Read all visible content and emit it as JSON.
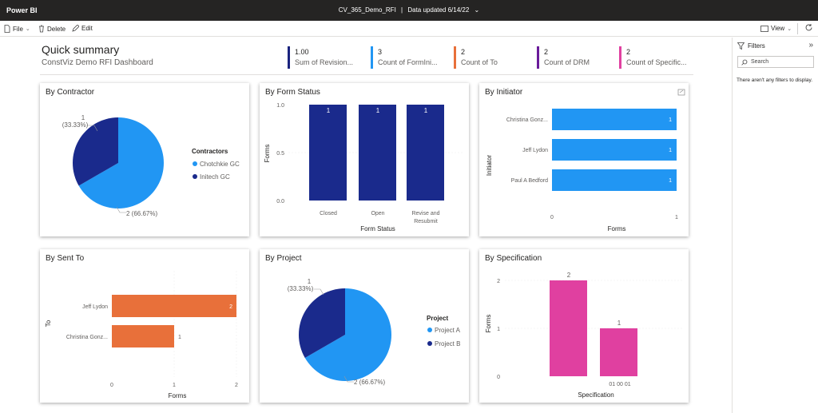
{
  "app": {
    "name": "Power BI",
    "report_title": "CV_365_Demo_RFI",
    "separator": "|",
    "data_updated": "Data updated 6/14/22"
  },
  "toolbar": {
    "file": "File",
    "delete": "Delete",
    "edit": "Edit",
    "view": "View"
  },
  "summary": {
    "title": "Quick summary",
    "subtitle": "ConstViz Demo RFI Dashboard"
  },
  "kpis": [
    {
      "value": "1.00",
      "label": "Sum of Revision...",
      "color": "#1a237e"
    },
    {
      "value": "3",
      "label": "Count of FormIni...",
      "color": "#2196f3"
    },
    {
      "value": "2",
      "label": "Count of To",
      "color": "#e8703a"
    },
    {
      "value": "2",
      "label": "Count of DRM",
      "color": "#6a1b9a"
    },
    {
      "value": "2",
      "label": "Count of Specific...",
      "color": "#e040a0"
    }
  ],
  "filters": {
    "title": "Filters",
    "search_placeholder": "Search",
    "empty": "There aren't any filters to display."
  },
  "colors": {
    "light_blue": "#2196f3",
    "dark_blue": "#1a2a8c",
    "orange": "#e8703a",
    "pink": "#e040a0"
  },
  "charts": {
    "contractor": {
      "title": "By Contractor",
      "legend_title": "Contractors",
      "label_small": "1",
      "label_small_pct": "(33.33%)",
      "label_large": "2 (66.67%)"
    },
    "form_status": {
      "title": "By Form Status",
      "xlabel": "Form Status",
      "ylabel": "Forms",
      "y_ticks": [
        "1.0",
        "0.5",
        "0.0"
      ],
      "cat_labels": [
        "Closed",
        "Open",
        "Revise and",
        "Resubmit"
      ]
    },
    "initiator": {
      "title": "By Initiator",
      "xlabel": "Forms",
      "ylabel": "Initiator",
      "x_ticks": [
        "0",
        "1"
      ]
    },
    "sent_to": {
      "title": "By Sent To",
      "xlabel": "Forms",
      "ylabel": "To",
      "x_ticks": [
        "0",
        "1",
        "2"
      ]
    },
    "project": {
      "title": "By Project",
      "legend_title": "Project",
      "label_small": "1",
      "label_small_pct": "(33.33%)",
      "label_large": "2 (66.67%)"
    },
    "specification": {
      "title": "By Specification",
      "xlabel": "Specification",
      "ylabel": "Forms",
      "y_ticks": [
        "2",
        "1",
        "0"
      ],
      "cat_label": "01 00 01"
    }
  },
  "chart_data": [
    {
      "type": "pie",
      "title": "By Contractor",
      "legend_title": "Contractors",
      "categories": [
        "Chotchkie GC",
        "Initech GC"
      ],
      "values": [
        2,
        1
      ],
      "percents": [
        "66.67%",
        "33.33%"
      ]
    },
    {
      "type": "bar",
      "title": "By Form Status",
      "categories": [
        "Closed",
        "Open",
        "Revise and Resubmit"
      ],
      "values": [
        1,
        1,
        1
      ],
      "xlabel": "Form Status",
      "ylabel": "Forms",
      "ylim": [
        0,
        1
      ]
    },
    {
      "type": "bar",
      "orientation": "horizontal",
      "title": "By Initiator",
      "categories": [
        "Christina Gonz...",
        "Jeff Lydon",
        "Paul A Bedford"
      ],
      "values": [
        1,
        1,
        1
      ],
      "xlabel": "Forms",
      "ylabel": "Initiator",
      "xlim": [
        0,
        1
      ]
    },
    {
      "type": "bar",
      "orientation": "horizontal",
      "title": "By Sent To",
      "categories": [
        "Jeff Lydon",
        "Christina Gonz..."
      ],
      "values": [
        2,
        1
      ],
      "xlabel": "Forms",
      "ylabel": "To",
      "xlim": [
        0,
        2
      ]
    },
    {
      "type": "pie",
      "title": "By Project",
      "legend_title": "Project",
      "categories": [
        "Project A",
        "Project B"
      ],
      "values": [
        2,
        1
      ],
      "percents": [
        "66.67%",
        "33.33%"
      ]
    },
    {
      "type": "bar",
      "title": "By Specification",
      "categories": [
        "",
        "01 00 01"
      ],
      "values": [
        2,
        1
      ],
      "xlabel": "Specification",
      "ylabel": "Forms",
      "ylim": [
        0,
        2
      ]
    }
  ]
}
